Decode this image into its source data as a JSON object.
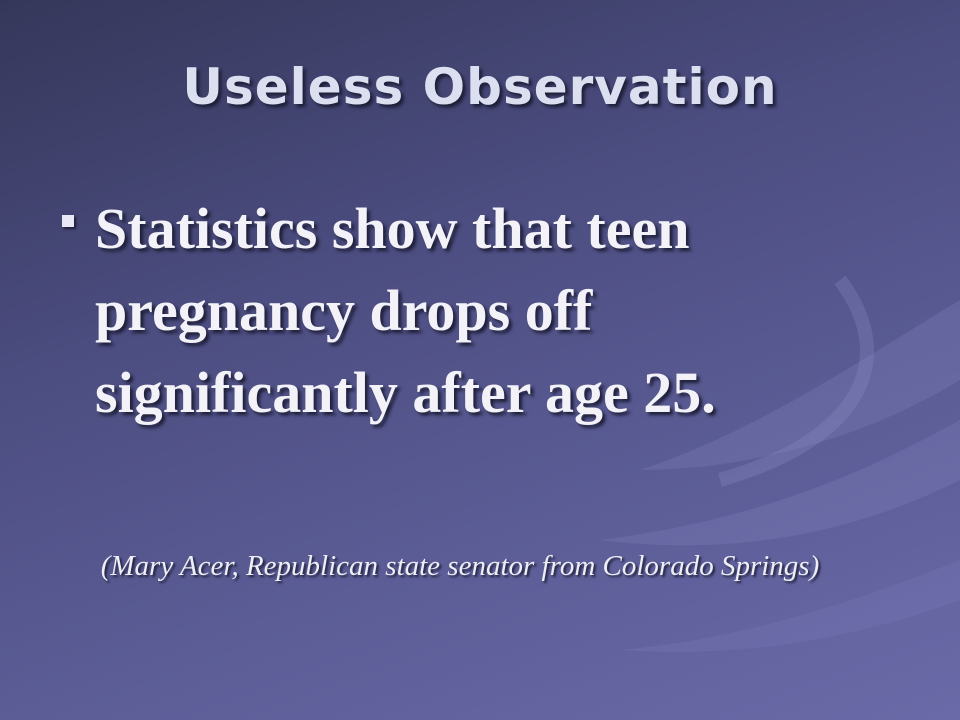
{
  "slide": {
    "title": "Useless Observation",
    "bullets": [
      "Statistics show that teen pregnancy drops off significantly after age 25."
    ],
    "attribution": "(Mary Acer, Republican state senator from Colorado Springs)"
  }
}
